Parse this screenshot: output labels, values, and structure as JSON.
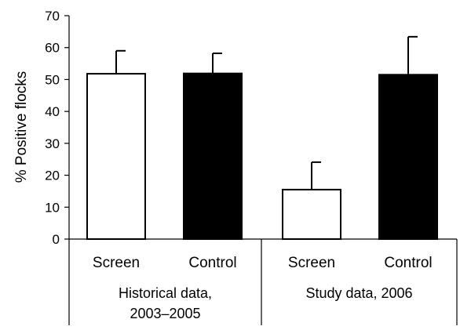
{
  "chart_data": {
    "type": "bar",
    "title": "",
    "ylabel": "% Positive flocks",
    "xlabel": "",
    "ylim": [
      0,
      70
    ],
    "yticks": [
      0,
      10,
      20,
      30,
      40,
      50,
      60,
      70
    ],
    "grid": false,
    "legend": "none",
    "groups": [
      {
        "label_lines": [
          "Historical data,",
          "2003–2005"
        ],
        "bars": [
          {
            "category": "Screen",
            "value": 51.8,
            "error": 7.2,
            "fill": "#ffffff"
          },
          {
            "category": "Control",
            "value": 51.9,
            "error": 6.3,
            "fill": "#000000"
          }
        ]
      },
      {
        "label_lines": [
          "Study data, 2006"
        ],
        "bars": [
          {
            "category": "Screen",
            "value": 15.5,
            "error": 8.6,
            "fill": "#ffffff"
          },
          {
            "category": "Control",
            "value": 51.5,
            "error": 11.9,
            "fill": "#000000"
          }
        ]
      }
    ]
  }
}
